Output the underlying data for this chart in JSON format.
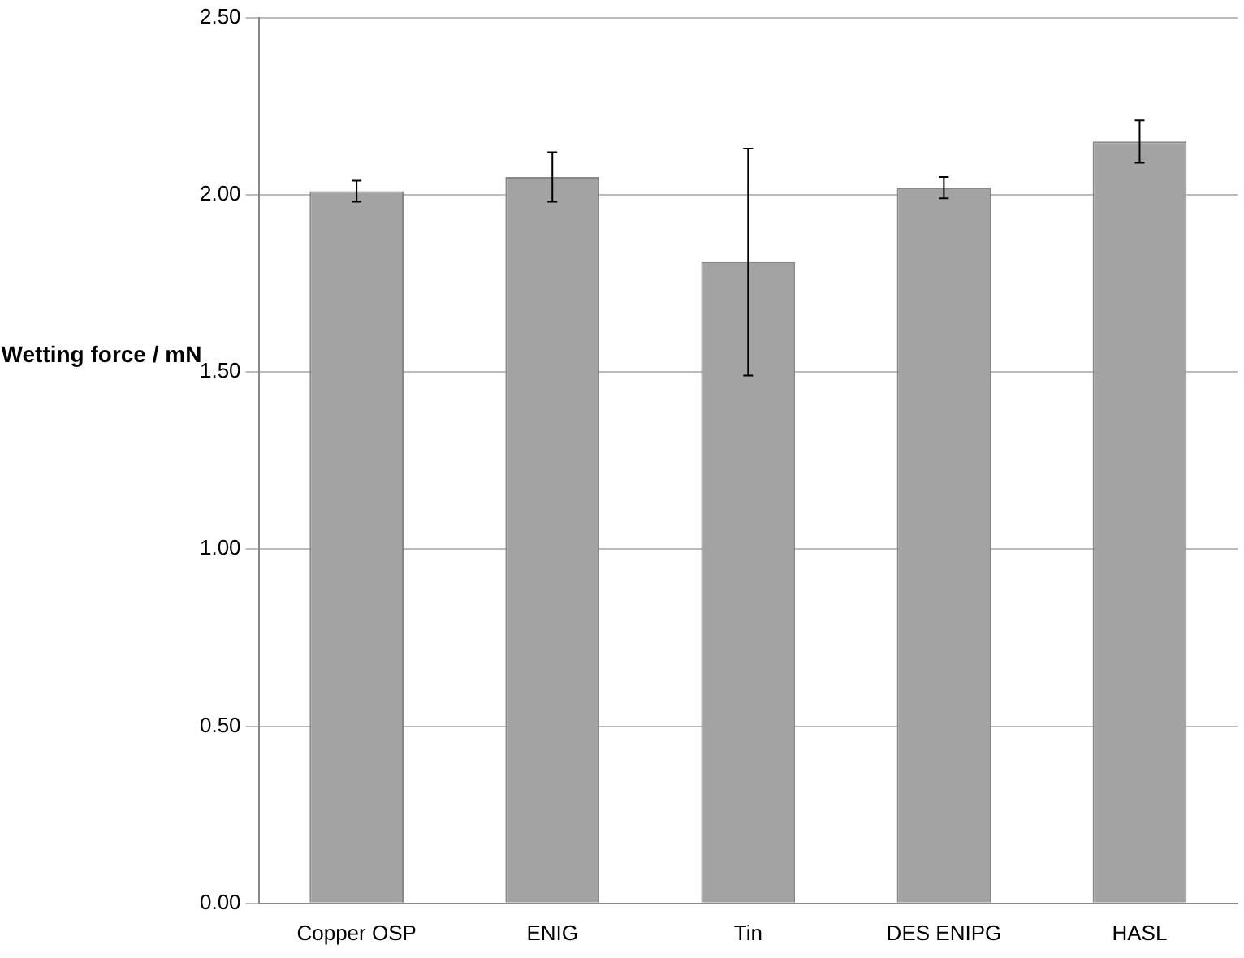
{
  "chart_data": {
    "type": "bar",
    "ylabel": "Wetting force / mN",
    "categories": [
      "Copper OSP",
      "ENIG",
      "Tin",
      "DES ENIPG",
      "HASL"
    ],
    "values": [
      2.01,
      2.05,
      1.81,
      2.02,
      2.15
    ],
    "errors": [
      0.03,
      0.07,
      0.32,
      0.03,
      0.06
    ],
    "color": "#a3a3a3",
    "ylim": [
      0,
      2.5
    ],
    "yticks": [
      {
        "value": 0,
        "label": "0.00"
      },
      {
        "value": 0.5,
        "label": "0.50"
      },
      {
        "value": 1,
        "label": "1.00"
      },
      {
        "value": 1.5,
        "label": "1.50"
      },
      {
        "value": 2,
        "label": "2.00"
      },
      {
        "value": 2.5,
        "label": "2.50"
      }
    ],
    "grid": "y"
  }
}
